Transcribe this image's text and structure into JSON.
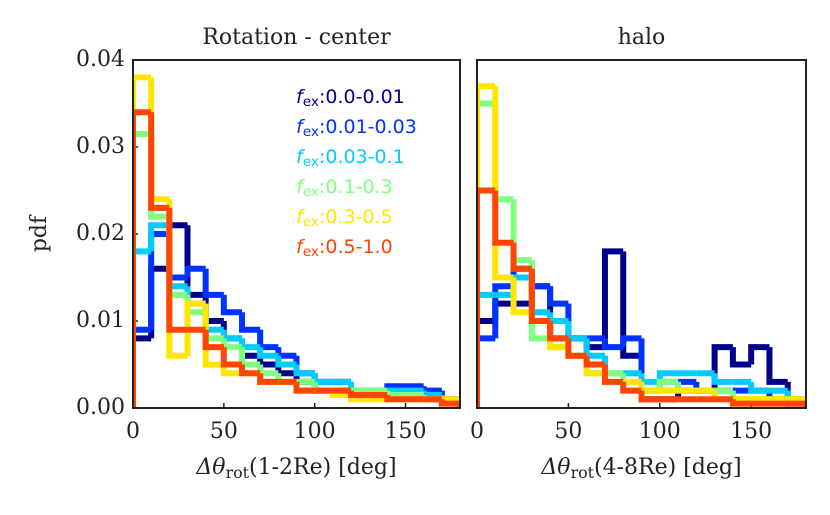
{
  "chart_data": [
    {
      "type": "histogram",
      "title": "Rotation - center",
      "xlabel": "Δθrot(1-2Re) [deg]",
      "ylabel": "pdf",
      "legend": "upper right",
      "bins": [
        0,
        10,
        20,
        30,
        40,
        50,
        60,
        70,
        80,
        90,
        100,
        110,
        120,
        130,
        140,
        150,
        160,
        170,
        180
      ],
      "xlim": [
        0,
        180
      ],
      "ylim": [
        0,
        0.04
      ],
      "xticks": [
        0,
        50,
        100,
        150
      ],
      "yticks": [
        {
          "value": 0,
          "label": "0.00"
        },
        {
          "value": 0.01,
          "label": "0.01"
        },
        {
          "value": 0.02,
          "label": "0.02"
        },
        {
          "value": 0.03,
          "label": "0.03"
        },
        {
          "value": 0.04,
          "label": "0.04"
        }
      ],
      "series": [
        {
          "name": "fex:0.0-0.01",
          "color": "#00008b",
          "values": [
            0.008,
            0.016,
            0.021,
            0.013,
            0.01,
            0.008,
            0.006,
            0.005,
            0.004,
            0.003,
            0.002,
            0.002,
            0.002,
            0.002,
            0.002,
            0.002,
            0.001,
            0.001
          ]
        },
        {
          "name": "fex:0.01-0.03",
          "color": "#0033ff",
          "values": [
            0.009,
            0.02,
            0.015,
            0.016,
            0.013,
            0.011,
            0.009,
            0.007,
            0.006,
            0.004,
            0.003,
            0.003,
            0.002,
            0.002,
            0.0025,
            0.0025,
            0.002,
            0.001
          ]
        },
        {
          "name": "fex:0.03-0.1",
          "color": "#00ccff",
          "values": [
            0.018,
            0.021,
            0.014,
            0.012,
            0.009,
            0.008,
            0.007,
            0.006,
            0.005,
            0.004,
            0.003,
            0.003,
            0.002,
            0.002,
            0.002,
            0.002,
            0.0015,
            0.001
          ]
        },
        {
          "name": "fex:0.1-0.3",
          "color": "#7fff7f",
          "values": [
            0.0315,
            0.022,
            0.013,
            0.011,
            0.008,
            0.007,
            0.005,
            0.004,
            0.003,
            0.003,
            0.002,
            0.002,
            0.002,
            0.002,
            0.0015,
            0.0015,
            0.001,
            0.001
          ]
        },
        {
          "name": "fex:0.3-0.5",
          "color": "#ffe600",
          "values": [
            0.038,
            0.024,
            0.006,
            0.012,
            0.005,
            0.004,
            0.004,
            0.003,
            0.003,
            0.002,
            0.002,
            0.0015,
            0.001,
            0.001,
            0.001,
            0.001,
            0.001,
            0.001
          ]
        },
        {
          "name": "fex:0.5-1.0",
          "color": "#ff4500",
          "values": [
            0.034,
            0.023,
            0.009,
            0.009,
            0.007,
            0.005,
            0.004,
            0.003,
            0.003,
            0.002,
            0.002,
            0.002,
            0.0015,
            0.0015,
            0.001,
            0.001,
            0.001,
            0.0005
          ]
        }
      ]
    },
    {
      "type": "histogram",
      "title": "halo",
      "xlabel": "Δθrot(4-8Re) [deg]",
      "bins": [
        0,
        10,
        20,
        30,
        40,
        50,
        60,
        70,
        80,
        90,
        100,
        110,
        120,
        130,
        140,
        150,
        160,
        170,
        180
      ],
      "xlim": [
        0,
        180
      ],
      "ylim": [
        0,
        0.04
      ],
      "xticks": [
        0,
        50,
        100,
        150
      ],
      "series": [
        {
          "color": "#00008b",
          "values": [
            0.01,
            0.012,
            0.012,
            0.014,
            0.008,
            0.008,
            0.007,
            0.018,
            0.006,
            0.001,
            0.001,
            0.002,
            0.002,
            0.007,
            0.005,
            0.007,
            0.003,
            0.0005
          ]
        },
        {
          "color": "#0033ff",
          "values": [
            0.008,
            0.014,
            0.016,
            0.014,
            0.012,
            0.008,
            0.008,
            0.007,
            0.008,
            0.002,
            0.003,
            0.003,
            0.002,
            0.002,
            0.002,
            0.002,
            0.001,
            0.001
          ]
        },
        {
          "color": "#00ccff",
          "values": [
            0.013,
            0.013,
            0.015,
            0.011,
            0.01,
            0.008,
            0.006,
            0.004,
            0.004,
            0.003,
            0.004,
            0.004,
            0.004,
            0.003,
            0.003,
            0.002,
            0.002,
            0.001
          ]
        },
        {
          "color": "#7fff7f",
          "values": [
            0.035,
            0.024,
            0.017,
            0.008,
            0.007,
            0.006,
            0.004,
            0.004,
            0.003,
            0.002,
            0.003,
            0.002,
            0.002,
            0.002,
            0.001,
            0.001,
            0.001,
            0.001
          ]
        },
        {
          "color": "#ffe600",
          "values": [
            0.037,
            0.015,
            0.011,
            0.01,
            0.007,
            0.006,
            0.004,
            0.003,
            0.003,
            0.002,
            0.002,
            0.002,
            0.002,
            0.001,
            0.001,
            0.001,
            0.001,
            0.001
          ]
        },
        {
          "color": "#ff4500",
          "values": [
            0.025,
            0.019,
            0.016,
            0.01,
            0.008,
            0.006,
            0.005,
            0.003,
            0.002,
            0.001,
            0.001,
            0.001,
            0.001,
            0.001,
            0.0005,
            0.0005,
            0.0005,
            0.0005
          ]
        }
      ]
    }
  ]
}
